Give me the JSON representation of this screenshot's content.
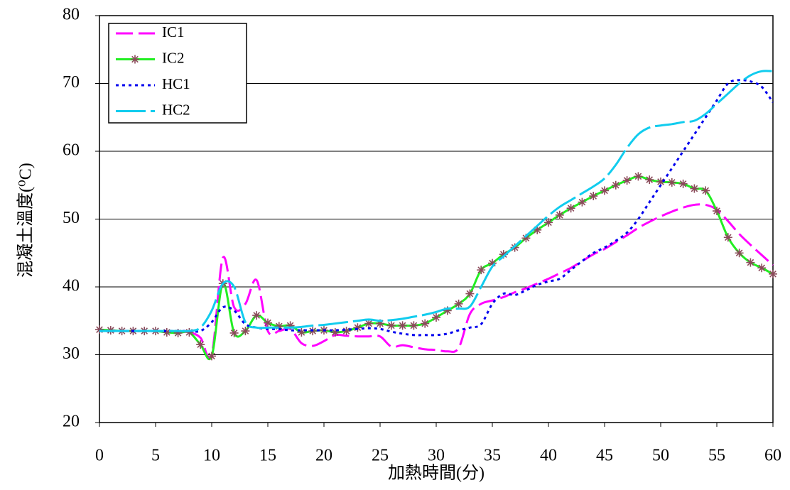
{
  "chart_data": {
    "type": "line",
    "x_label": "加熱時間(分)",
    "y_label": "混凝土溫度(⁰C)",
    "x": [
      0,
      1,
      2,
      3,
      4,
      5,
      6,
      7,
      8,
      9,
      10,
      11,
      12,
      13,
      14,
      15,
      16,
      17,
      18,
      19,
      20,
      21,
      22,
      23,
      24,
      25,
      26,
      27,
      28,
      29,
      30,
      31,
      32,
      33,
      34,
      35,
      36,
      37,
      38,
      39,
      40,
      41,
      42,
      43,
      44,
      45,
      46,
      47,
      48,
      49,
      50,
      51,
      52,
      53,
      54,
      55,
      56,
      57,
      58,
      59,
      60
    ],
    "series": [
      {
        "name": "IC1",
        "color": "#ff00ff",
        "line_style": "dash",
        "values": [
          33.6,
          33.6,
          33.5,
          33.5,
          33.5,
          33.5,
          33.4,
          33.3,
          33.3,
          32.5,
          30,
          44.3,
          37,
          37.5,
          41,
          33.5,
          33.5,
          33.8,
          31.7,
          31.3,
          32,
          32.9,
          32.8,
          32.7,
          32.7,
          32.7,
          31.2,
          31.4,
          31.1,
          30.8,
          30.7,
          30.5,
          31,
          36,
          37.5,
          38,
          38.5,
          39.2,
          39.8,
          40.5,
          41.2,
          42,
          42.8,
          43.8,
          44.8,
          45.6,
          46.6,
          47.6,
          48.7,
          49.6,
          50.4,
          51.1,
          51.7,
          52.1,
          52.1,
          51.4,
          49.7,
          47.8,
          46.2,
          44.7,
          43.2
        ]
      },
      {
        "name": "IC2",
        "color": "#22ee22",
        "line_style": "solid",
        "marker": "asterisk",
        "marker_color": "#8b4a5a",
        "values": [
          33.7,
          33.6,
          33.5,
          33.5,
          33.5,
          33.5,
          33.3,
          33.2,
          33.3,
          31.5,
          29.8,
          40.5,
          33.2,
          33.5,
          35.8,
          34.7,
          34.2,
          34.3,
          33.3,
          33.5,
          33.6,
          33.3,
          33.5,
          34,
          34.6,
          34.6,
          34.3,
          34.3,
          34.3,
          34.6,
          35.5,
          36.5,
          37.5,
          39,
          42.5,
          43.5,
          44.8,
          45.8,
          47.2,
          48.4,
          49.5,
          50.6,
          51.6,
          52.5,
          53.4,
          54.2,
          55,
          55.7,
          56.3,
          55.8,
          55.5,
          55.4,
          55.2,
          54.5,
          54.2,
          51.2,
          47.3,
          45,
          43.6,
          42.8,
          41.9
        ]
      },
      {
        "name": "HC1",
        "color": "#0000ee",
        "line_style": "dot",
        "values": [
          33.5,
          33.5,
          33.5,
          33.5,
          33.5,
          33.5,
          33.5,
          33.5,
          33.5,
          33.5,
          34.8,
          37,
          36.5,
          34.5,
          34,
          33.8,
          33.8,
          33.6,
          33.6,
          33.6,
          33.6,
          33.6,
          33.7,
          33.8,
          33.9,
          33.8,
          33.4,
          33.1,
          32.9,
          32.9,
          32.9,
          33.1,
          33.6,
          34,
          34.5,
          37.5,
          39,
          38.8,
          39.5,
          40.3,
          40.8,
          41.2,
          42.5,
          43.8,
          45,
          45.8,
          46.8,
          48,
          50,
          52.5,
          55,
          57.5,
          60,
          62.5,
          65,
          67.5,
          70,
          70.5,
          70.3,
          69.5,
          67.2
        ]
      },
      {
        "name": "HC2",
        "color": "#11ccee",
        "line_style": "longdash",
        "values": [
          33.5,
          33.5,
          33.5,
          33.5,
          33.5,
          33.5,
          33.5,
          33.5,
          33.5,
          34,
          36.5,
          40.5,
          40,
          34.8,
          34,
          34,
          34,
          34,
          34.1,
          34.3,
          34.4,
          34.6,
          34.8,
          35,
          35.2,
          35,
          35.1,
          35.3,
          35.6,
          35.9,
          36.3,
          36.8,
          36.8,
          37.1,
          40,
          43,
          44.5,
          46,
          47.5,
          49,
          50.5,
          51.8,
          52.8,
          53.8,
          54.8,
          56,
          58,
          60.5,
          62.5,
          63.5,
          63.8,
          64,
          64.3,
          64.5,
          65.5,
          67,
          68.5,
          70,
          71.2,
          71.8,
          71.8
        ]
      }
    ],
    "xlim": [
      0,
      60
    ],
    "xticks": [
      0,
      5,
      10,
      15,
      20,
      25,
      30,
      35,
      40,
      45,
      50,
      55,
      60
    ],
    "ylim": [
      20,
      80
    ],
    "yticks": [
      20,
      30,
      40,
      50,
      60,
      70,
      80
    ],
    "grid": true,
    "legend": "upper left"
  }
}
